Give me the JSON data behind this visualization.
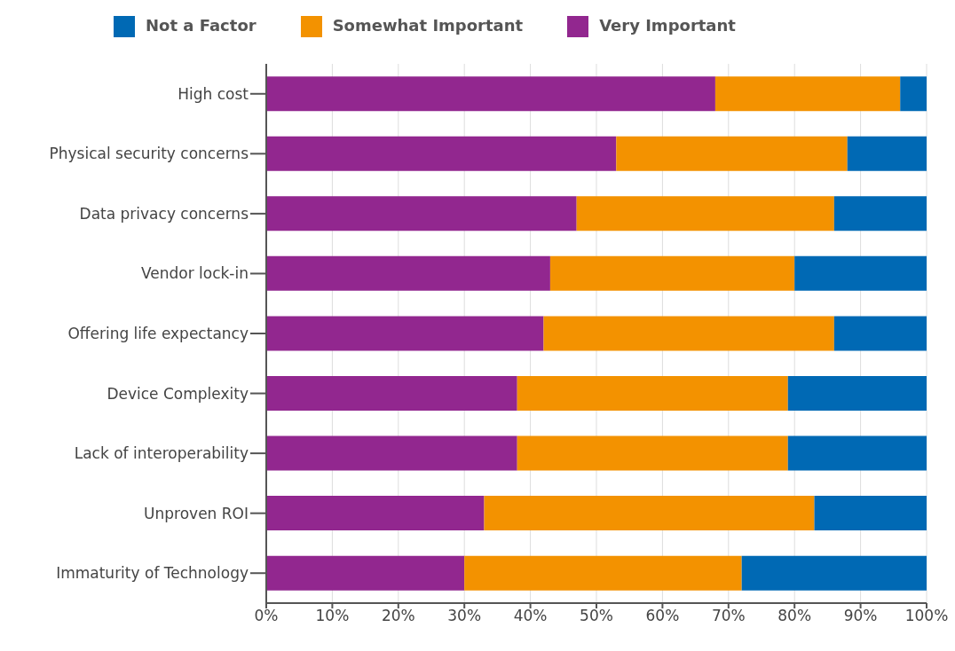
{
  "chart_data": {
    "type": "bar",
    "orientation": "horizontal",
    "stacked": true,
    "categories": [
      "High cost",
      "Physical security concerns",
      "Data privacy concerns",
      "Vendor lock-in",
      "Offering life expectancy",
      "Device Complexity",
      "Lack of interoperability",
      "Unproven ROI",
      "Immaturity of Technology"
    ],
    "series": [
      {
        "name": "Very Important",
        "color": "#92278f",
        "values": [
          68,
          53,
          47,
          43,
          42,
          38,
          38,
          33,
          30
        ]
      },
      {
        "name": "Somewhat Important",
        "color": "#f39200",
        "values": [
          28,
          35,
          39,
          37,
          44,
          41,
          41,
          50,
          42
        ]
      },
      {
        "name": "Not a Factor",
        "color": "#0069b4",
        "values": [
          4,
          12,
          14,
          20,
          14,
          21,
          21,
          17,
          28
        ]
      }
    ],
    "xlim": [
      0,
      100
    ],
    "xticks": [
      {
        "value": 0,
        "label": "0%"
      },
      {
        "value": 10,
        "label": "10%"
      },
      {
        "value": 20,
        "label": "20%"
      },
      {
        "value": 30,
        "label": "30%"
      },
      {
        "value": 40,
        "label": "40%"
      },
      {
        "value": 50,
        "label": "50%"
      },
      {
        "value": 60,
        "label": "60%"
      },
      {
        "value": 70,
        "label": "70%"
      },
      {
        "value": 80,
        "label": "80%"
      },
      {
        "value": 90,
        "label": "90%"
      },
      {
        "value": 100,
        "label": "100%"
      }
    ],
    "grid": "x",
    "legend": "top"
  }
}
